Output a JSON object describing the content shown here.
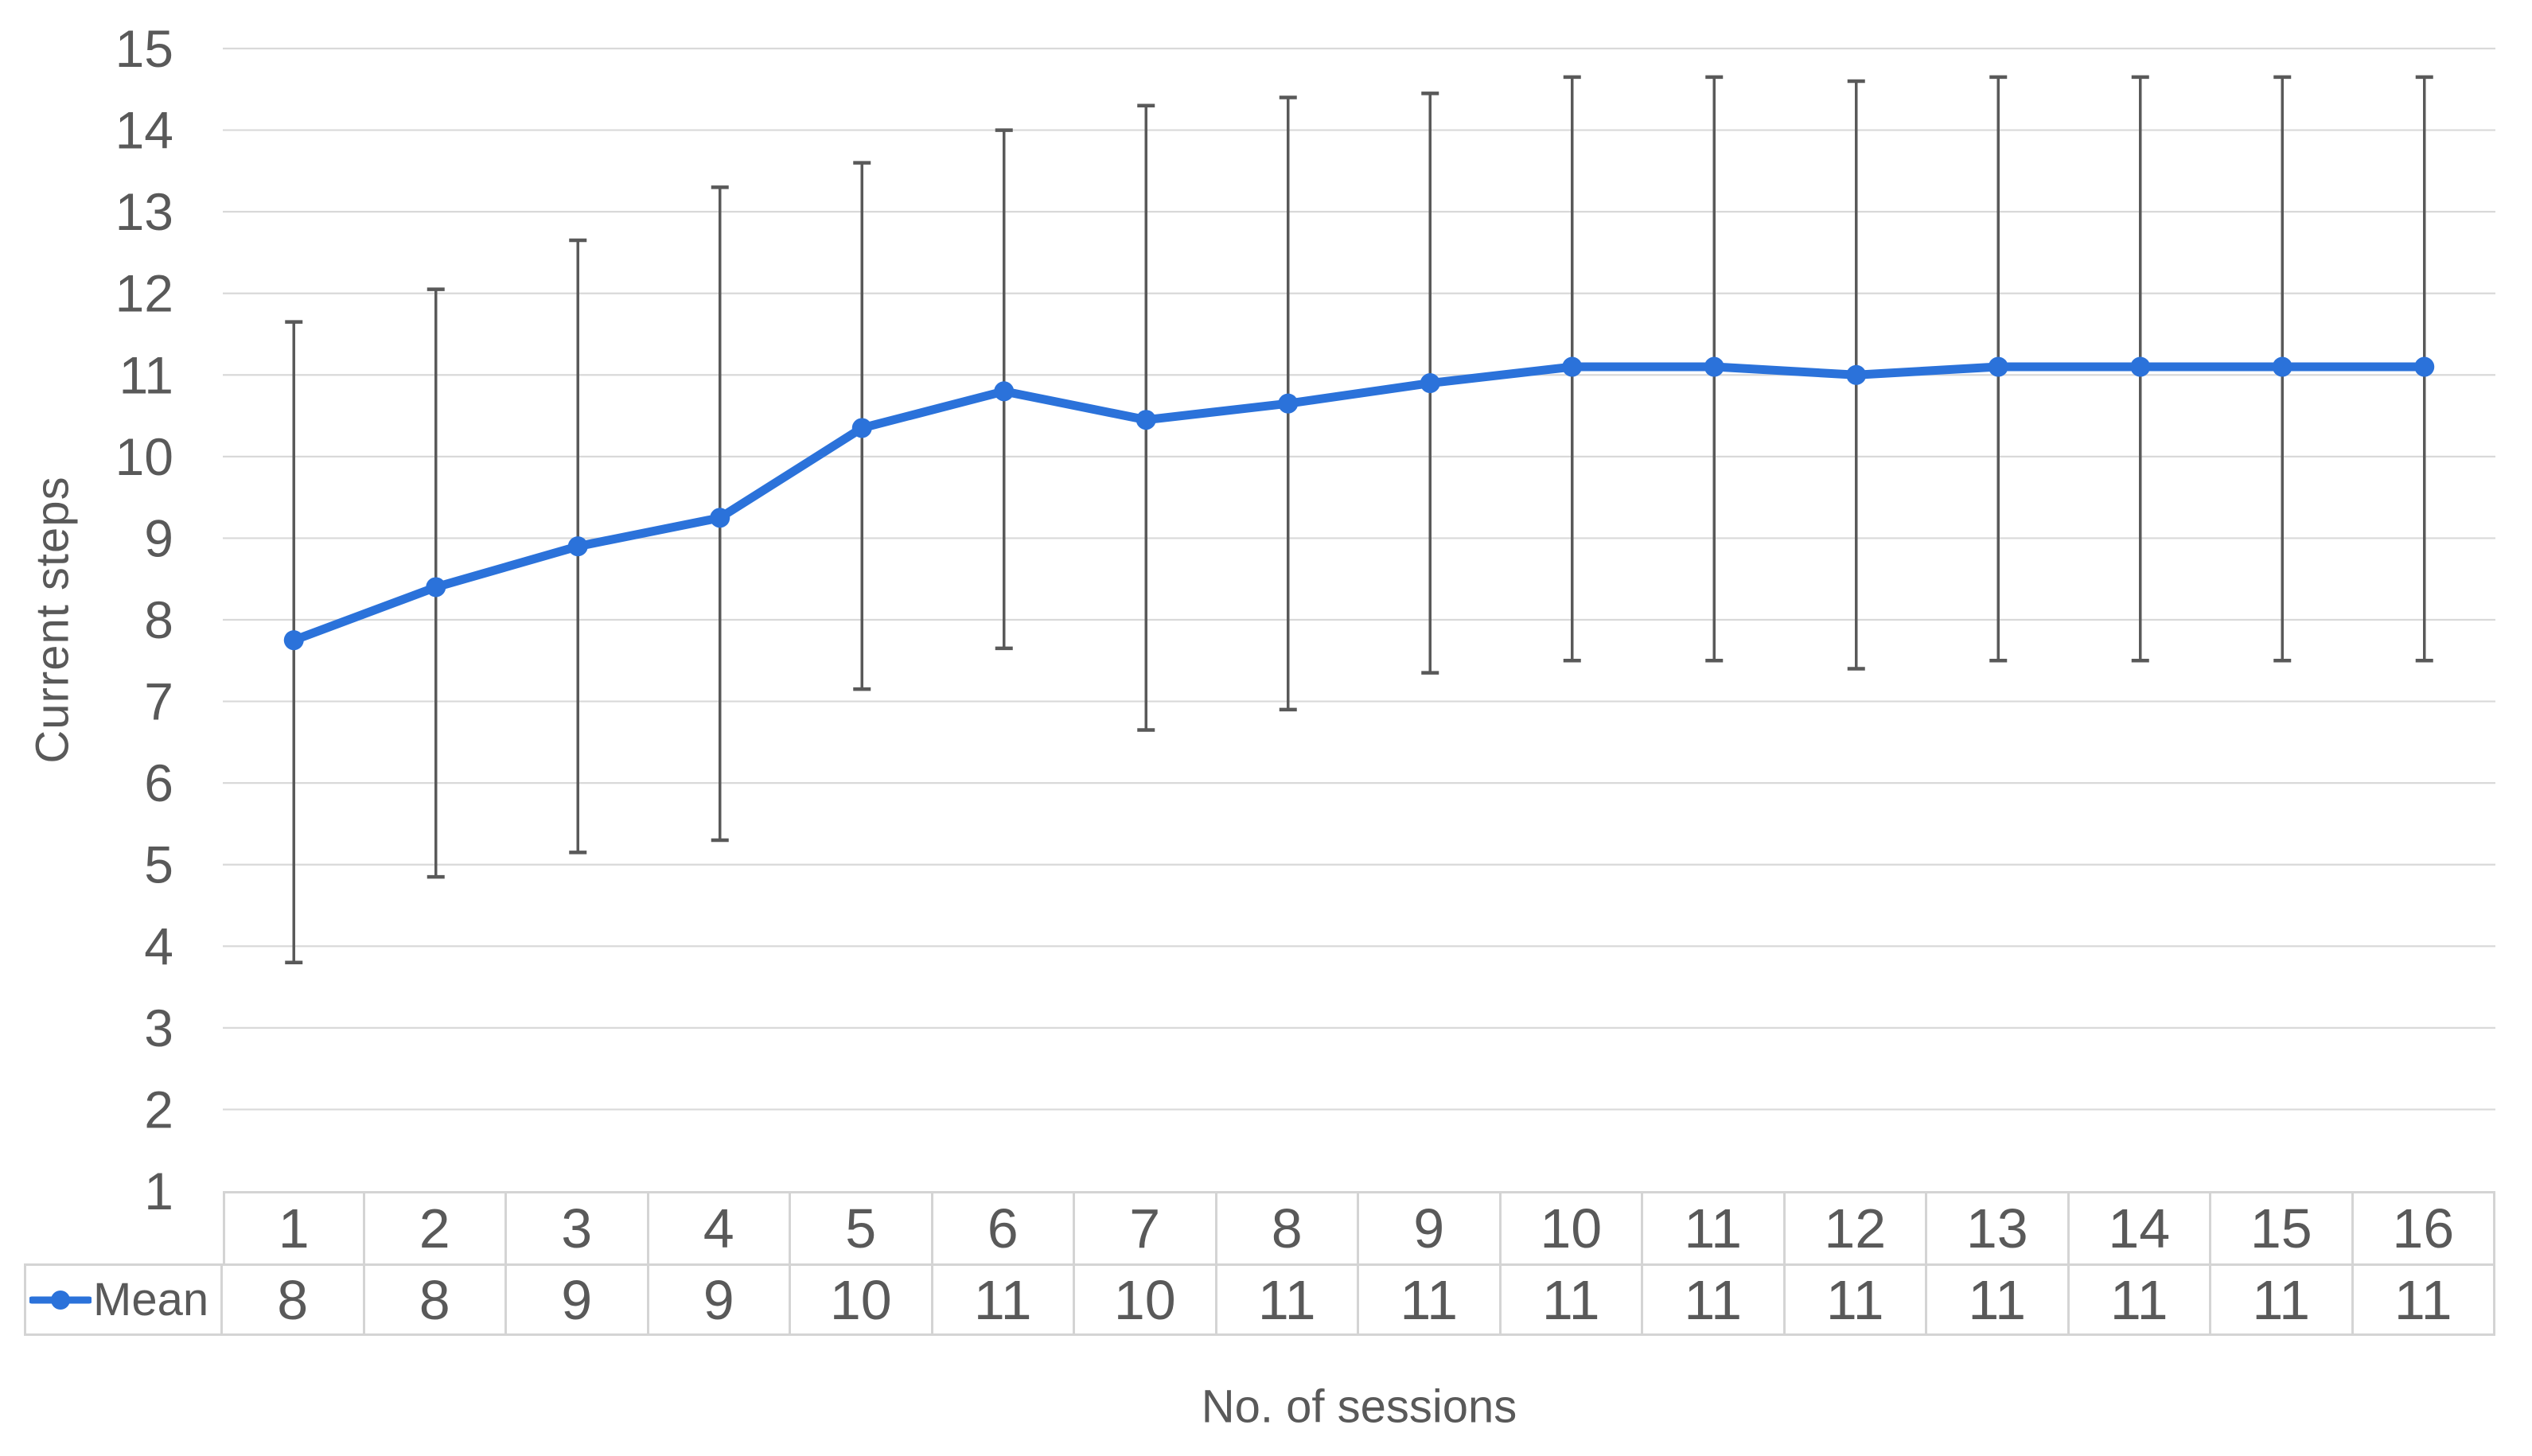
{
  "chart_data": {
    "type": "line",
    "title": "",
    "xlabel": "No. of sessions",
    "ylabel": "Current steps",
    "categories": [
      "1",
      "2",
      "3",
      "4",
      "5",
      "6",
      "7",
      "8",
      "9",
      "10",
      "11",
      "12",
      "13",
      "14",
      "15",
      "16"
    ],
    "yticks": [
      1,
      2,
      3,
      4,
      5,
      6,
      7,
      8,
      9,
      10,
      11,
      12,
      13,
      14,
      15
    ],
    "ylim": [
      1,
      15
    ],
    "grid": true,
    "legend_position": "table-row-left",
    "series": [
      {
        "name": "Mean",
        "values": [
          7.75,
          8.4,
          8.9,
          9.25,
          10.35,
          10.8,
          10.45,
          10.65,
          10.9,
          11.1,
          11.1,
          11.0,
          11.1,
          11.1,
          11.1,
          11.1
        ],
        "error_low": [
          3.8,
          4.85,
          5.15,
          5.3,
          7.15,
          7.65,
          6.65,
          6.9,
          7.35,
          7.5,
          7.5,
          7.4,
          7.5,
          7.5,
          7.5,
          7.5
        ],
        "error_high": [
          11.65,
          12.05,
          12.65,
          13.3,
          13.6,
          14.0,
          14.3,
          14.4,
          14.45,
          14.65,
          14.65,
          14.6,
          14.65,
          14.65,
          14.65,
          14.65
        ],
        "table_values": [
          "8",
          "8",
          "9",
          "9",
          "10",
          "11",
          "10",
          "11",
          "11",
          "11",
          "11",
          "11",
          "11",
          "11",
          "11",
          "11"
        ]
      }
    ],
    "colors": {
      "line": "#2b72da",
      "error_bar": "#595959",
      "gridline": "#d9d9d9",
      "table_border": "#d4d4d4",
      "text": "#595959"
    }
  }
}
